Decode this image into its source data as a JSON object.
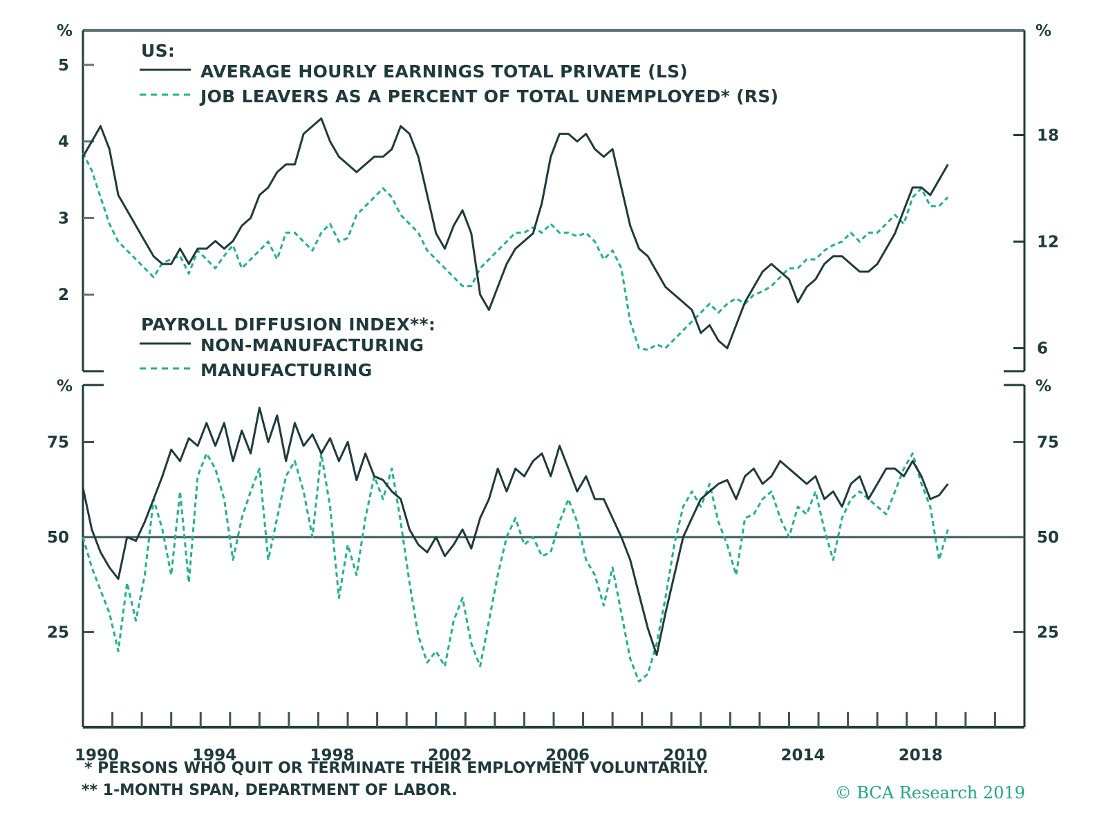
{
  "colors": {
    "dark": "#1f3a3d",
    "green": "#1fb386",
    "frame": "#1f3a3d"
  },
  "chart_data": [
    {
      "type": "line",
      "panel": "top",
      "legend_title": "US:",
      "legend_placement": "top-left",
      "left_unit": "%",
      "right_unit": "%",
      "x_range": [
        1990,
        2022
      ],
      "y_left_range": [
        1.0,
        5.45
      ],
      "y_right_range": [
        4.7,
        23.9
      ],
      "y_left_ticks": [
        2,
        3,
        4,
        5
      ],
      "y_right_ticks": [
        6,
        12,
        18
      ],
      "series": [
        {
          "name": "AVERAGE HOURLY EARNINGS TOTAL PRIVATE (LS)",
          "axis": "left",
          "style": "solid",
          "x": [
            1990.0,
            1990.3,
            1990.6,
            1990.9,
            1991.2,
            1991.5,
            1991.8,
            1992.1,
            1992.4,
            1992.7,
            1993.0,
            1993.3,
            1993.6,
            1993.9,
            1994.2,
            1994.5,
            1994.8,
            1995.1,
            1995.4,
            1995.7,
            1996.0,
            1996.3,
            1996.6,
            1996.9,
            1997.2,
            1997.5,
            1997.8,
            1998.1,
            1998.4,
            1998.7,
            1999.0,
            1999.3,
            1999.6,
            1999.9,
            2000.2,
            2000.5,
            2000.8,
            2001.1,
            2001.4,
            2001.7,
            2002.0,
            2002.3,
            2002.6,
            2002.9,
            2003.2,
            2003.5,
            2003.8,
            2004.1,
            2004.4,
            2004.7,
            2005.0,
            2005.3,
            2005.6,
            2005.9,
            2006.2,
            2006.5,
            2006.8,
            2007.1,
            2007.4,
            2007.7,
            2008.0,
            2008.3,
            2008.6,
            2008.9,
            2009.2,
            2009.5,
            2009.8,
            2010.1,
            2010.4,
            2010.7,
            2011.0,
            2011.3,
            2011.6,
            2011.9,
            2012.2,
            2012.5,
            2012.8,
            2013.1,
            2013.4,
            2013.7,
            2014.0,
            2014.3,
            2014.6,
            2014.9,
            2015.2,
            2015.5,
            2015.8,
            2016.1,
            2016.4,
            2016.7,
            2017.0,
            2017.3,
            2017.6,
            2017.9,
            2018.2,
            2018.5,
            2018.8,
            2019.1,
            2019.4
          ],
          "values": [
            3.8,
            4.0,
            4.2,
            3.9,
            3.3,
            3.1,
            2.9,
            2.7,
            2.5,
            2.4,
            2.4,
            2.6,
            2.4,
            2.6,
            2.6,
            2.7,
            2.6,
            2.7,
            2.9,
            3.0,
            3.3,
            3.4,
            3.6,
            3.7,
            3.7,
            4.1,
            4.2,
            4.3,
            4.0,
            3.8,
            3.7,
            3.6,
            3.7,
            3.8,
            3.8,
            3.9,
            4.2,
            4.1,
            3.8,
            3.3,
            2.8,
            2.6,
            2.9,
            3.1,
            2.8,
            2.0,
            1.8,
            2.1,
            2.4,
            2.6,
            2.7,
            2.8,
            3.2,
            3.8,
            4.1,
            4.1,
            4.0,
            4.1,
            3.9,
            3.8,
            3.9,
            3.4,
            2.9,
            2.6,
            2.5,
            2.3,
            2.1,
            2.0,
            1.9,
            1.8,
            1.5,
            1.6,
            1.4,
            1.3,
            1.6,
            1.9,
            2.1,
            2.3,
            2.4,
            2.3,
            2.2,
            1.9,
            2.1,
            2.2,
            2.4,
            2.5,
            2.5,
            2.4,
            2.3,
            2.3,
            2.4,
            2.6,
            2.8,
            3.1,
            3.4,
            3.4,
            3.3,
            3.5,
            3.7
          ]
        },
        {
          "name": "JOB LEAVERS AS A PERCENT OF TOTAL UNEMPLOYED* (RS)",
          "axis": "right",
          "style": "dashed",
          "x": [
            1990.0,
            1990.3,
            1990.6,
            1990.9,
            1991.2,
            1991.5,
            1991.8,
            1992.1,
            1992.4,
            1992.7,
            1993.0,
            1993.3,
            1993.6,
            1993.9,
            1994.2,
            1994.5,
            1994.8,
            1995.1,
            1995.4,
            1995.7,
            1996.0,
            1996.3,
            1996.6,
            1996.9,
            1997.2,
            1997.5,
            1997.8,
            1998.1,
            1998.4,
            1998.7,
            1999.0,
            1999.3,
            1999.6,
            1999.9,
            2000.2,
            2000.5,
            2000.8,
            2001.1,
            2001.4,
            2001.7,
            2002.0,
            2002.3,
            2002.6,
            2002.9,
            2003.2,
            2003.5,
            2003.8,
            2004.1,
            2004.4,
            2004.7,
            2005.0,
            2005.3,
            2005.6,
            2005.9,
            2006.2,
            2006.5,
            2006.8,
            2007.1,
            2007.4,
            2007.7,
            2008.0,
            2008.3,
            2008.6,
            2008.9,
            2009.2,
            2009.5,
            2009.8,
            2010.1,
            2010.4,
            2010.7,
            2011.0,
            2011.3,
            2011.6,
            2011.9,
            2012.2,
            2012.5,
            2012.8,
            2013.1,
            2013.4,
            2013.7,
            2014.0,
            2014.3,
            2014.6,
            2014.9,
            2015.2,
            2015.5,
            2015.8,
            2016.1,
            2016.4,
            2016.7,
            2017.0,
            2017.3,
            2017.6,
            2017.9,
            2018.2,
            2018.5,
            2018.8,
            2019.1,
            2019.4
          ],
          "values": [
            17.0,
            16.0,
            14.5,
            13.0,
            12.0,
            11.5,
            11.0,
            10.5,
            10.0,
            10.8,
            11.0,
            11.2,
            10.2,
            11.5,
            11.0,
            10.5,
            11.2,
            11.8,
            10.5,
            11.0,
            11.5,
            12.0,
            11.0,
            12.5,
            12.5,
            12.0,
            11.5,
            12.5,
            13.0,
            12.0,
            12.2,
            13.5,
            14.0,
            14.5,
            15.0,
            14.5,
            13.5,
            13.0,
            12.5,
            11.5,
            11.0,
            10.5,
            10.0,
            9.5,
            9.5,
            10.5,
            11.0,
            11.5,
            12.0,
            12.5,
            12.5,
            12.8,
            12.5,
            13.0,
            12.5,
            12.5,
            12.3,
            12.5,
            12.0,
            11.0,
            11.5,
            10.5,
            7.5,
            6.0,
            5.9,
            6.2,
            6.0,
            6.5,
            7.0,
            7.5,
            8.0,
            8.5,
            8.0,
            8.5,
            8.8,
            8.5,
            9.0,
            9.2,
            9.5,
            10.0,
            10.5,
            10.5,
            11.0,
            11.0,
            11.5,
            11.8,
            12.0,
            12.5,
            12.0,
            12.5,
            12.5,
            13.0,
            13.5,
            13.0,
            14.5,
            15.0,
            14.0,
            14.0,
            14.5
          ]
        }
      ]
    },
    {
      "type": "line",
      "panel": "bottom",
      "legend_title": "PAYROLL DIFFUSION INDEX**:",
      "legend_placement": "top-left",
      "left_unit": "%",
      "right_unit": "%",
      "x_range": [
        1990,
        2022
      ],
      "y_range": [
        0,
        90
      ],
      "y_ticks": [
        25,
        50,
        75
      ],
      "reference_line": 50,
      "x_tick_labels": [
        "1990",
        "1994",
        "1998",
        "2002",
        "2006",
        "2010",
        "2014",
        "2018"
      ],
      "series": [
        {
          "name": "NON-MANUFACTURING",
          "style": "solid",
          "x": [
            1990.0,
            1990.3,
            1990.6,
            1990.9,
            1991.2,
            1991.5,
            1991.8,
            1992.1,
            1992.4,
            1992.7,
            1993.0,
            1993.3,
            1993.6,
            1993.9,
            1994.2,
            1994.5,
            1994.8,
            1995.1,
            1995.4,
            1995.7,
            1996.0,
            1996.3,
            1996.6,
            1996.9,
            1997.2,
            1997.5,
            1997.8,
            1998.1,
            1998.4,
            1998.7,
            1999.0,
            1999.3,
            1999.6,
            1999.9,
            2000.2,
            2000.5,
            2000.8,
            2001.1,
            2001.4,
            2001.7,
            2002.0,
            2002.3,
            2002.6,
            2002.9,
            2003.2,
            2003.5,
            2003.8,
            2004.1,
            2004.4,
            2004.7,
            2005.0,
            2005.3,
            2005.6,
            2005.9,
            2006.2,
            2006.5,
            2006.8,
            2007.1,
            2007.4,
            2007.7,
            2008.0,
            2008.3,
            2008.6,
            2008.9,
            2009.2,
            2009.5,
            2009.8,
            2010.1,
            2010.4,
            2010.7,
            2011.0,
            2011.3,
            2011.6,
            2011.9,
            2012.2,
            2012.5,
            2012.8,
            2013.1,
            2013.4,
            2013.7,
            2014.0,
            2014.3,
            2014.6,
            2014.9,
            2015.2,
            2015.5,
            2015.8,
            2016.1,
            2016.4,
            2016.7,
            2017.0,
            2017.3,
            2017.6,
            2017.9,
            2018.2,
            2018.5,
            2018.8,
            2019.1,
            2019.4
          ],
          "values": [
            63,
            52,
            46,
            42,
            39,
            50,
            49,
            54,
            60,
            66,
            73,
            70,
            76,
            74,
            80,
            74,
            80,
            70,
            78,
            72,
            84,
            75,
            82,
            70,
            80,
            74,
            77,
            72,
            76,
            70,
            75,
            65,
            72,
            66,
            65,
            62,
            60,
            52,
            48,
            46,
            50,
            45,
            48,
            52,
            47,
            55,
            60,
            68,
            62,
            68,
            66,
            70,
            72,
            66,
            74,
            68,
            62,
            66,
            60,
            60,
            55,
            50,
            44,
            35,
            26,
            19,
            30,
            40,
            50,
            55,
            60,
            62,
            64,
            65,
            60,
            66,
            68,
            64,
            66,
            70,
            68,
            66,
            64,
            66,
            60,
            62,
            58,
            64,
            66,
            60,
            64,
            68,
            68,
            66,
            70,
            66,
            60,
            61,
            64
          ]
        },
        {
          "name": "MANUFACTURING",
          "style": "dashed",
          "x": [
            1990.0,
            1990.3,
            1990.6,
            1990.9,
            1991.2,
            1991.5,
            1991.8,
            1992.1,
            1992.4,
            1992.7,
            1993.0,
            1993.3,
            1993.6,
            1993.9,
            1994.2,
            1994.5,
            1994.8,
            1995.1,
            1995.4,
            1995.7,
            1996.0,
            1996.3,
            1996.6,
            1996.9,
            1997.2,
            1997.5,
            1997.8,
            1998.1,
            1998.4,
            1998.7,
            1999.0,
            1999.3,
            1999.6,
            1999.9,
            2000.2,
            2000.5,
            2000.8,
            2001.1,
            2001.4,
            2001.7,
            2002.0,
            2002.3,
            2002.6,
            2002.9,
            2003.2,
            2003.5,
            2003.8,
            2004.1,
            2004.4,
            2004.7,
            2005.0,
            2005.3,
            2005.6,
            2005.9,
            2006.2,
            2006.5,
            2006.8,
            2007.1,
            2007.4,
            2007.7,
            2008.0,
            2008.3,
            2008.6,
            2008.9,
            2009.2,
            2009.5,
            2009.8,
            2010.1,
            2010.4,
            2010.7,
            2011.0,
            2011.3,
            2011.6,
            2011.9,
            2012.2,
            2012.5,
            2012.8,
            2013.1,
            2013.4,
            2013.7,
            2014.0,
            2014.3,
            2014.6,
            2014.9,
            2015.2,
            2015.5,
            2015.8,
            2016.1,
            2016.4,
            2016.7,
            2017.0,
            2017.3,
            2017.6,
            2017.9,
            2018.2,
            2018.5,
            2018.8,
            2019.1,
            2019.4
          ],
          "values": [
            50,
            42,
            36,
            30,
            20,
            38,
            28,
            40,
            60,
            52,
            40,
            62,
            38,
            66,
            72,
            68,
            60,
            44,
            55,
            62,
            68,
            44,
            55,
            66,
            70,
            62,
            50,
            72,
            58,
            34,
            48,
            40,
            55,
            66,
            60,
            68,
            54,
            38,
            24,
            17,
            20,
            16,
            28,
            34,
            22,
            16,
            28,
            40,
            50,
            55,
            48,
            50,
            45,
            46,
            54,
            60,
            54,
            44,
            40,
            32,
            42,
            30,
            18,
            12,
            14,
            22,
            34,
            48,
            58,
            62,
            58,
            64,
            54,
            48,
            40,
            55,
            56,
            60,
            62,
            55,
            50,
            58,
            56,
            62,
            52,
            44,
            55,
            60,
            62,
            60,
            58,
            56,
            62,
            68,
            72,
            64,
            58,
            44,
            52
          ]
        }
      ]
    }
  ],
  "top": {
    "unit_left": "%",
    "unit_right": "%",
    "left_ticks": [
      "2",
      "3",
      "4",
      "5"
    ],
    "right_ticks": [
      "6",
      "12",
      "18"
    ],
    "legend_title": "US:",
    "legend_solid": "AVERAGE HOURLY EARNINGS TOTAL PRIVATE (LS)",
    "legend_dashed": "JOB LEAVERS AS A PERCENT OF TOTAL UNEMPLOYED* (RS)"
  },
  "bottom": {
    "unit_left": "%",
    "unit_right": "%",
    "ticks": [
      "25",
      "50",
      "75"
    ],
    "legend_title": "PAYROLL DIFFUSION INDEX**:",
    "legend_solid": "NON-MANUFACTURING",
    "legend_dashed": "MANUFACTURING",
    "x_labels": [
      "1990",
      "1994",
      "1998",
      "2002",
      "2006",
      "2010",
      "2014",
      "2018"
    ]
  },
  "footnotes": {
    "note1": "*  PERSONS WHO QUIT OR TERMINATE THEIR EMPLOYMENT VOLUNTARILY.",
    "note2": "** 1-MONTH SPAN, DEPARTMENT OF LABOR.",
    "copyright": "© BCA Research 2019"
  }
}
